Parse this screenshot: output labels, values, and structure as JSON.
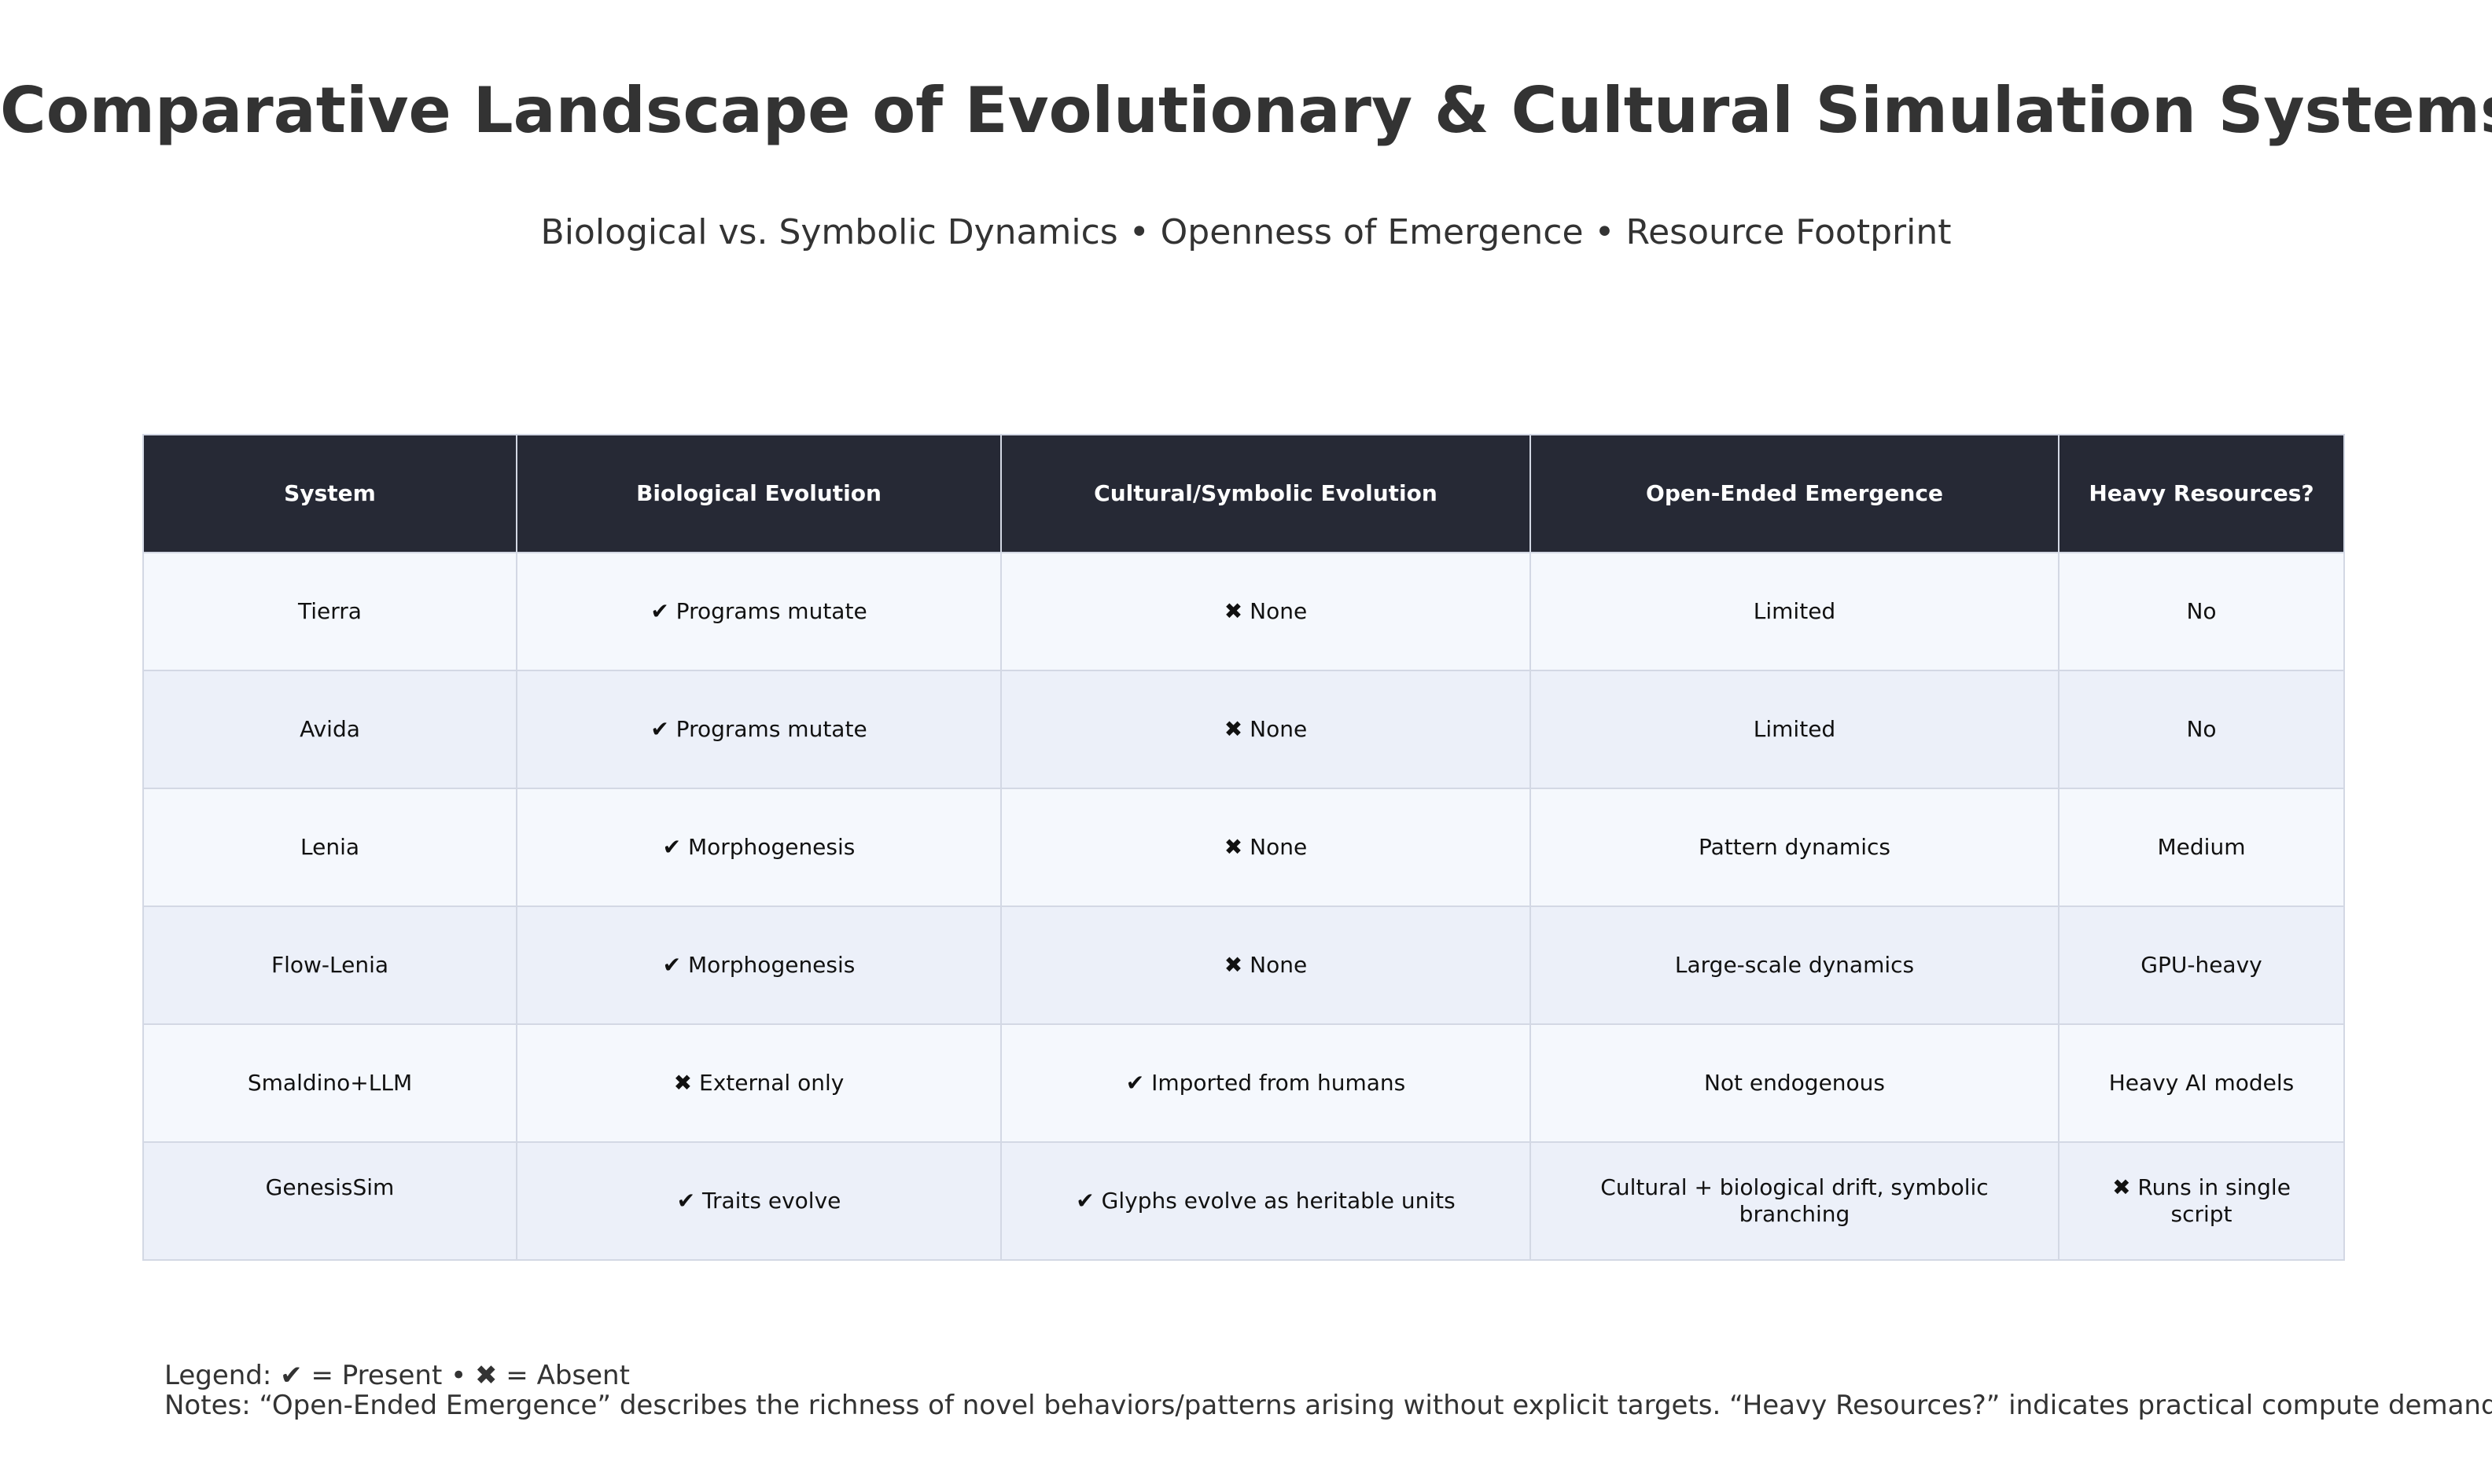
{
  "title": "Comparative Landscape of Evolutionary & Cultural Simulation Systems",
  "subtitle": "Biological vs. Symbolic Dynamics • Openness of Emergence • Resource Footprint",
  "colors": {
    "header_bg": "#262935",
    "header_text": "#ffffff",
    "row_odd": "#f5f8fd",
    "row_even": "#ecf0f9",
    "border": "#d3d8e4",
    "title_text": "#333333"
  },
  "chart_data": {
    "type": "table",
    "columns": [
      "System",
      "Biological Evolution",
      "Cultural/Symbolic Evolution",
      "Open-Ended Emergence",
      "Heavy Resources?"
    ],
    "rows": [
      [
        "Tierra",
        "✔ Programs mutate",
        "✖ None",
        "Limited",
        "No"
      ],
      [
        "Avida",
        "✔ Programs mutate",
        "✖ None",
        "Limited",
        "No"
      ],
      [
        "Lenia",
        "✔ Morphogenesis",
        "✖ None",
        "Pattern dynamics",
        "Medium"
      ],
      [
        "Flow-Lenia",
        "✔ Morphogenesis",
        "✖ None",
        "Large-scale dynamics",
        "GPU-heavy"
      ],
      [
        "Smaldino+LLM",
        "✖ External only",
        "✔ Imported from humans",
        "Not endogenous",
        "Heavy AI models"
      ],
      [
        "GenesisSim",
        "✔ Traits evolve",
        "✔ Glyphs evolve as heritable units",
        "Cultural + biological drift, symbolic branching",
        "✖ Runs in single script"
      ]
    ]
  },
  "footer": {
    "legend": "Legend: ✔ = Present • ✖ = Absent",
    "notes": "Notes: “Open-Ended Emergence” describes the richness of novel behaviors/patterns arising without explicit targets. “Heavy Resources?” indicates practical compute demands."
  }
}
